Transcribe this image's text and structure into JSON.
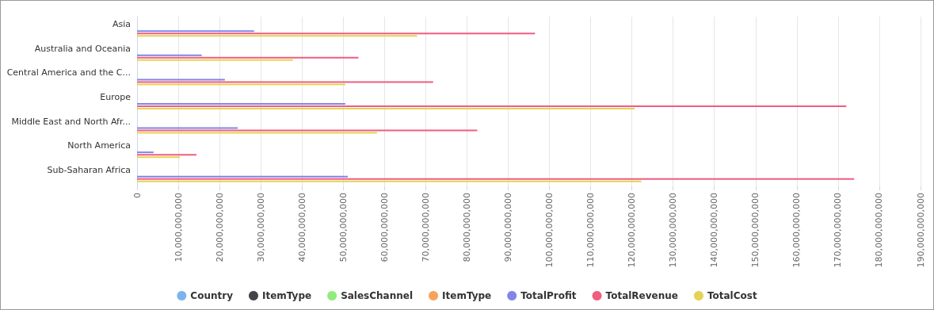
{
  "chart_data": {
    "type": "bar",
    "orientation": "horizontal",
    "categories": [
      "Asia",
      "Australia and Oceania",
      "Central America and the C...",
      "Europe",
      "Middle East and North Afr...",
      "North America",
      "Sub-Saharan Africa"
    ],
    "series": [
      {
        "name": "Country",
        "color": "#7cb5ec",
        "values": [
          null,
          null,
          null,
          null,
          null,
          null,
          null
        ]
      },
      {
        "name": "ItemType",
        "color": "#434348",
        "values": [
          null,
          null,
          null,
          null,
          null,
          null,
          null
        ]
      },
      {
        "name": "SalesChannel",
        "color": "#90ed7d",
        "values": [
          null,
          null,
          null,
          null,
          null,
          null,
          null
        ]
      },
      {
        "name": "ItemType",
        "color": "#f7a35c",
        "values": [
          null,
          null,
          null,
          null,
          null,
          null,
          null
        ]
      },
      {
        "name": "TotalProfit",
        "color": "#8085e9",
        "values": [
          28400000000,
          15700000000,
          21300000000,
          50500000000,
          24400000000,
          4000000000,
          51100000000
        ]
      },
      {
        "name": "TotalRevenue",
        "color": "#f15c80",
        "values": [
          96500000000,
          53700000000,
          71800000000,
          172000000000,
          82500000000,
          14400000000,
          173900000000
        ]
      },
      {
        "name": "TotalCost",
        "color": "#e4d354",
        "values": [
          67900000000,
          37800000000,
          50500000000,
          120700000000,
          58200000000,
          10400000000,
          122300000000
        ]
      }
    ],
    "xlim": [
      0,
      190000000000
    ],
    "xticks": [
      0,
      {
        "value": 10000000000,
        "label": "10,000,000,000"
      },
      {
        "value": 20000000000,
        "label": "20,000,000,000"
      },
      {
        "value": 30000000000,
        "label": "30,000,000,000"
      },
      {
        "value": 40000000000,
        "label": "40,000,000,000"
      },
      {
        "value": 50000000000,
        "label": "50,000,000,000"
      },
      {
        "value": 60000000000,
        "label": "60,000,000,000"
      },
      {
        "value": 70000000000,
        "label": "70,000,000,000"
      },
      {
        "value": 80000000000,
        "label": "80,000,000,000"
      },
      {
        "value": 90000000000,
        "label": "90,000,000,000"
      },
      {
        "value": 100000000000,
        "label": "100,000,000,000"
      },
      {
        "value": 110000000000,
        "label": "110,000,000,000"
      },
      {
        "value": 120000000000,
        "label": "120,000,000,000"
      },
      {
        "value": 130000000000,
        "label": "130,000,000,000"
      },
      {
        "value": 140000000000,
        "label": "140,000,000,000"
      },
      {
        "value": 150000000000,
        "label": "150,000,000,000"
      },
      {
        "value": 160000000000,
        "label": "160,000,000,000"
      },
      {
        "value": 170000000000,
        "label": "170,000,000,000"
      },
      {
        "value": 180000000000,
        "label": "180,000,000,000"
      },
      {
        "value": 190000000000,
        "label": "190,000,000,000"
      }
    ],
    "grid": "x",
    "legend": "bottom"
  }
}
